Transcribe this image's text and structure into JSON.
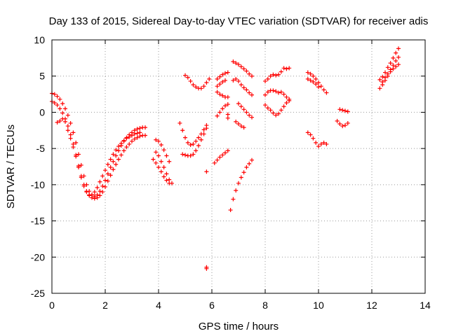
{
  "chart_data": {
    "type": "scatter",
    "title": "Day 133 of 2015, Sidereal Day-to-day VTEC variation (SDTVAR) for receiver adis",
    "xlabel": "GPS time / hours",
    "ylabel": "SDTVAR / TECUs",
    "xlim": [
      0,
      14
    ],
    "ylim": [
      -25,
      10
    ],
    "xticks": [
      "0",
      "2",
      "4",
      "6",
      "8",
      "10",
      "12",
      "14"
    ],
    "yticks": [
      "10",
      "5",
      "0",
      "-5",
      "-10",
      "-15",
      "-20",
      "-25"
    ],
    "grid": true,
    "marker": "plus",
    "colors": {
      "series": "#ff0000"
    },
    "series": [
      {
        "points": [
          [
            0.0,
            2.6
          ],
          [
            0.1,
            2.5
          ],
          [
            0.2,
            2.2
          ],
          [
            0.3,
            1.8
          ],
          [
            0.4,
            1.2
          ],
          [
            0.5,
            0.5
          ],
          [
            0.6,
            -0.4
          ],
          [
            0.7,
            -1.5
          ],
          [
            0.8,
            -2.8
          ],
          [
            0.9,
            -4.2
          ],
          [
            1.0,
            -5.8
          ],
          [
            1.1,
            -7.3
          ],
          [
            1.2,
            -8.8
          ],
          [
            1.3,
            -10.0
          ],
          [
            1.4,
            -10.9
          ],
          [
            1.5,
            -11.4
          ],
          [
            1.6,
            -11.6
          ],
          [
            1.7,
            -11.4
          ],
          [
            1.8,
            -10.9
          ],
          [
            1.9,
            -10.2
          ],
          [
            2.0,
            -9.4
          ],
          [
            2.1,
            -8.5
          ],
          [
            2.2,
            -7.6
          ],
          [
            2.3,
            -6.8
          ],
          [
            2.4,
            -6.0
          ],
          [
            2.5,
            -5.3
          ],
          [
            2.6,
            -4.6
          ],
          [
            2.7,
            -4.0
          ],
          [
            2.8,
            -3.5
          ],
          [
            2.9,
            -3.1
          ],
          [
            3.0,
            -2.8
          ],
          [
            3.1,
            -2.5
          ],
          [
            3.2,
            -2.3
          ],
          [
            3.3,
            -2.2
          ],
          [
            3.4,
            -2.1
          ],
          [
            3.5,
            -2.1
          ],
          [
            0.0,
            1.5
          ],
          [
            0.1,
            1.3
          ],
          [
            0.2,
            1.0
          ],
          [
            0.3,
            0.5
          ],
          [
            0.4,
            -0.1
          ],
          [
            0.5,
            -0.9
          ],
          [
            0.6,
            -1.9
          ],
          [
            0.7,
            -3.1
          ],
          [
            0.8,
            -4.4
          ],
          [
            0.9,
            -5.9
          ],
          [
            1.0,
            -7.4
          ],
          [
            1.1,
            -8.8
          ],
          [
            1.2,
            -10.0
          ],
          [
            1.3,
            -10.9
          ],
          [
            1.4,
            -11.5
          ],
          [
            1.5,
            -11.8
          ],
          [
            1.6,
            -11.9
          ],
          [
            1.7,
            -11.8
          ],
          [
            1.8,
            -11.5
          ],
          [
            1.9,
            -11.0
          ],
          [
            2.0,
            -10.3
          ],
          [
            2.1,
            -9.5
          ],
          [
            2.2,
            -8.7
          ],
          [
            2.3,
            -7.9
          ],
          [
            2.4,
            -7.2
          ],
          [
            2.5,
            -6.5
          ],
          [
            2.6,
            -5.9
          ],
          [
            2.7,
            -5.3
          ],
          [
            2.8,
            -4.8
          ],
          [
            2.9,
            -4.4
          ],
          [
            3.0,
            -4.0
          ],
          [
            3.1,
            -3.7
          ],
          [
            3.2,
            -3.5
          ],
          [
            3.3,
            -3.3
          ],
          [
            3.4,
            -3.2
          ],
          [
            3.5,
            -3.2
          ],
          [
            0.2,
            -1.4
          ],
          [
            0.3,
            -1.2
          ],
          [
            0.4,
            -0.9
          ],
          [
            0.5,
            -1.3
          ],
          [
            0.6,
            -2.5
          ],
          [
            0.7,
            -3.6
          ],
          [
            0.8,
            -4.8
          ],
          [
            0.9,
            -6.1
          ],
          [
            1.0,
            -7.6
          ],
          [
            1.1,
            -9.0
          ],
          [
            1.2,
            -10.2
          ],
          [
            1.3,
            -11.0
          ],
          [
            1.4,
            -11.4
          ],
          [
            1.5,
            -11.4
          ],
          [
            1.6,
            -11.0
          ],
          [
            1.7,
            -10.4
          ],
          [
            1.8,
            -9.6
          ],
          [
            1.9,
            -8.8
          ],
          [
            2.0,
            -8.0
          ],
          [
            2.1,
            -7.2
          ],
          [
            2.2,
            -6.5
          ],
          [
            2.3,
            -5.8
          ],
          [
            2.4,
            -5.2
          ],
          [
            2.5,
            -4.7
          ],
          [
            2.6,
            -4.3
          ],
          [
            2.7,
            -3.9
          ],
          [
            2.8,
            -3.6
          ],
          [
            2.9,
            -3.4
          ],
          [
            3.0,
            -3.2
          ],
          [
            3.1,
            -3.0
          ],
          [
            3.2,
            -2.9
          ],
          [
            3.3,
            -2.8
          ],
          [
            3.9,
            -3.8
          ],
          [
            4.0,
            -4.0
          ],
          [
            4.1,
            -4.5
          ],
          [
            4.2,
            -5.2
          ],
          [
            4.3,
            -6.0
          ],
          [
            4.4,
            -6.8
          ],
          [
            3.9,
            -5.5
          ],
          [
            4.0,
            -6.0
          ],
          [
            4.1,
            -6.8
          ],
          [
            4.2,
            -7.6
          ],
          [
            4.3,
            -8.5
          ],
          [
            4.4,
            -9.3
          ],
          [
            4.5,
            -9.8
          ],
          [
            3.8,
            -6.5
          ],
          [
            3.9,
            -7.0
          ],
          [
            4.0,
            -7.6
          ],
          [
            4.1,
            -8.2
          ],
          [
            4.2,
            -8.9
          ],
          [
            4.3,
            -9.4
          ],
          [
            4.4,
            -9.8
          ],
          [
            4.8,
            -1.5
          ],
          [
            4.9,
            -2.5
          ],
          [
            5.0,
            -3.5
          ],
          [
            5.1,
            -4.2
          ],
          [
            5.2,
            -4.5
          ],
          [
            5.3,
            -4.4
          ],
          [
            5.4,
            -4.0
          ],
          [
            5.5,
            -3.5
          ],
          [
            5.6,
            -3.0
          ],
          [
            5.7,
            -2.4
          ],
          [
            5.8,
            -1.8
          ],
          [
            4.9,
            -5.8
          ],
          [
            5.0,
            -5.9
          ],
          [
            5.1,
            -6.0
          ],
          [
            5.2,
            -6.0
          ],
          [
            5.3,
            -5.8
          ],
          [
            5.4,
            -5.3
          ],
          [
            5.5,
            -4.6
          ],
          [
            5.6,
            -3.8
          ],
          [
            5.7,
            -3.0
          ],
          [
            5.8,
            -2.2
          ],
          [
            5.0,
            5.1
          ],
          [
            5.1,
            4.8
          ],
          [
            5.2,
            4.3
          ],
          [
            5.3,
            3.8
          ],
          [
            5.4,
            3.5
          ],
          [
            5.5,
            3.3
          ],
          [
            5.6,
            3.3
          ],
          [
            5.7,
            3.6
          ],
          [
            5.8,
            4.1
          ],
          [
            5.9,
            4.6
          ],
          [
            5.8,
            -8.2
          ],
          [
            5.8,
            -21.4
          ],
          [
            5.8,
            -21.6
          ],
          [
            6.1,
            -7.0
          ],
          [
            6.2,
            -6.6
          ],
          [
            6.3,
            -6.2
          ],
          [
            6.4,
            -5.9
          ],
          [
            6.5,
            -5.6
          ],
          [
            6.6,
            -5.3
          ],
          [
            6.2,
            4.6
          ],
          [
            6.3,
            4.9
          ],
          [
            6.4,
            5.2
          ],
          [
            6.5,
            5.4
          ],
          [
            6.6,
            5.5
          ],
          [
            6.2,
            3.6
          ],
          [
            6.3,
            3.9
          ],
          [
            6.4,
            4.2
          ],
          [
            6.5,
            4.4
          ],
          [
            6.2,
            2.8
          ],
          [
            6.3,
            2.5
          ],
          [
            6.4,
            2.3
          ],
          [
            6.5,
            2.1
          ],
          [
            6.6,
            2.1
          ],
          [
            6.2,
            -0.5
          ],
          [
            6.3,
            0.0
          ],
          [
            6.4,
            0.5
          ],
          [
            6.5,
            0.9
          ],
          [
            6.6,
            1.1
          ],
          [
            6.6,
            -0.3
          ],
          [
            6.6,
            -0.8
          ],
          [
            6.7,
            -13.5
          ],
          [
            6.8,
            -12.0
          ],
          [
            6.9,
            -10.8
          ],
          [
            7.0,
            -9.8
          ],
          [
            7.1,
            -9.0
          ],
          [
            7.2,
            -8.3
          ],
          [
            7.3,
            -7.6
          ],
          [
            7.4,
            -7.1
          ],
          [
            7.5,
            -6.6
          ],
          [
            6.8,
            7.0
          ],
          [
            6.9,
            6.8
          ],
          [
            7.0,
            6.6
          ],
          [
            7.1,
            6.3
          ],
          [
            7.2,
            6.0
          ],
          [
            7.3,
            5.7
          ],
          [
            7.4,
            5.3
          ],
          [
            7.5,
            5.0
          ],
          [
            6.8,
            4.4
          ],
          [
            6.9,
            4.6
          ],
          [
            7.0,
            4.3
          ],
          [
            7.1,
            3.8
          ],
          [
            7.2,
            3.4
          ],
          [
            7.3,
            3.1
          ],
          [
            7.4,
            2.7
          ],
          [
            7.5,
            2.4
          ],
          [
            7.0,
            1.2
          ],
          [
            7.1,
            0.8
          ],
          [
            7.2,
            0.4
          ],
          [
            7.3,
            0.0
          ],
          [
            7.4,
            -0.4
          ],
          [
            7.5,
            -0.7
          ],
          [
            6.9,
            -1.3
          ],
          [
            7.0,
            -1.6
          ],
          [
            7.1,
            -1.9
          ],
          [
            7.2,
            -2.1
          ],
          [
            8.0,
            4.3
          ],
          [
            8.1,
            4.6
          ],
          [
            8.2,
            5.0
          ],
          [
            8.3,
            5.2
          ],
          [
            8.4,
            5.1
          ],
          [
            8.5,
            5.2
          ],
          [
            8.6,
            5.6
          ],
          [
            8.7,
            6.1
          ],
          [
            8.8,
            6.0
          ],
          [
            8.9,
            6.1
          ],
          [
            8.0,
            2.4
          ],
          [
            8.1,
            2.8
          ],
          [
            8.2,
            3.0
          ],
          [
            8.3,
            3.0
          ],
          [
            8.4,
            2.9
          ],
          [
            8.5,
            2.7
          ],
          [
            8.6,
            2.8
          ],
          [
            8.7,
            2.5
          ],
          [
            8.8,
            2.1
          ],
          [
            8.9,
            1.6
          ],
          [
            8.0,
            1.0
          ],
          [
            8.1,
            0.6
          ],
          [
            8.2,
            0.3
          ],
          [
            8.3,
            -0.1
          ],
          [
            8.4,
            -0.4
          ],
          [
            8.5,
            -0.2
          ],
          [
            8.6,
            0.3
          ],
          [
            8.7,
            0.8
          ],
          [
            8.8,
            1.3
          ],
          [
            8.9,
            1.8
          ],
          [
            9.6,
            5.5
          ],
          [
            9.7,
            5.3
          ],
          [
            9.8,
            5.0
          ],
          [
            9.9,
            4.6
          ],
          [
            10.0,
            4.1
          ],
          [
            10.1,
            3.6
          ],
          [
            10.2,
            3.1
          ],
          [
            10.3,
            2.7
          ],
          [
            9.6,
            4.6
          ],
          [
            9.7,
            4.4
          ],
          [
            9.8,
            4.2
          ],
          [
            9.9,
            3.9
          ],
          [
            10.0,
            3.5
          ],
          [
            9.6,
            -2.8
          ],
          [
            9.7,
            -3.1
          ],
          [
            9.8,
            -3.6
          ],
          [
            9.9,
            -4.2
          ],
          [
            10.0,
            -4.7
          ],
          [
            10.1,
            -4.4
          ],
          [
            10.2,
            -4.2
          ],
          [
            10.3,
            -4.4
          ],
          [
            10.8,
            0.4
          ],
          [
            10.9,
            0.3
          ],
          [
            11.0,
            0.2
          ],
          [
            11.1,
            0.1
          ],
          [
            10.7,
            -1.2
          ],
          [
            10.8,
            -1.6
          ],
          [
            10.9,
            -1.9
          ],
          [
            11.0,
            -1.8
          ],
          [
            11.1,
            -1.5
          ],
          [
            12.3,
            4.5
          ],
          [
            12.4,
            4.9
          ],
          [
            12.5,
            5.5
          ],
          [
            12.6,
            6.2
          ],
          [
            12.7,
            6.8
          ],
          [
            12.8,
            7.5
          ],
          [
            12.9,
            8.2
          ],
          [
            13.0,
            8.8
          ],
          [
            12.3,
            3.3
          ],
          [
            12.4,
            3.8
          ],
          [
            12.5,
            4.4
          ],
          [
            12.6,
            5.0
          ],
          [
            12.7,
            5.6
          ],
          [
            12.8,
            6.0
          ],
          [
            12.9,
            6.3
          ],
          [
            13.0,
            6.6
          ],
          [
            12.4,
            4.2
          ],
          [
            12.5,
            4.8
          ],
          [
            12.6,
            5.3
          ],
          [
            12.7,
            5.9
          ],
          [
            12.8,
            6.5
          ],
          [
            12.9,
            7.1
          ],
          [
            13.0,
            7.6
          ]
        ]
      }
    ]
  }
}
